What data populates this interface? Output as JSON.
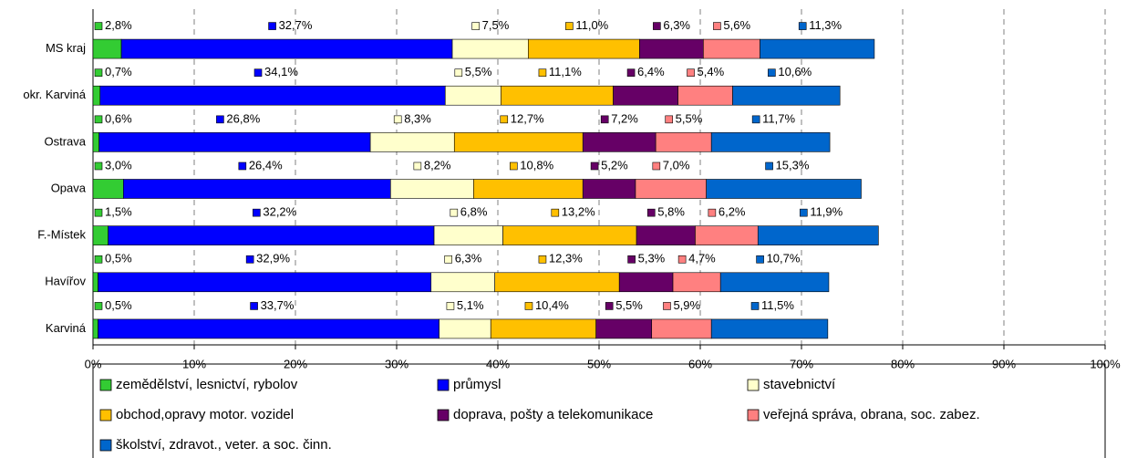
{
  "chart_data": {
    "type": "bar",
    "orientation": "horizontal",
    "stacked": true,
    "categories": [
      "MS kraj",
      "okr. Karviná",
      "Ostrava",
      "Opava",
      "F.-Místek",
      "Havířov",
      "Karviná"
    ],
    "series": [
      {
        "name": "zemědělství, lesnictví, rybolov",
        "color": "#33cc33",
        "values": [
          2.8,
          0.7,
          0.6,
          3.0,
          1.5,
          0.5,
          0.5
        ],
        "value_labels": [
          "2,8%",
          "0,7%",
          "0,6%",
          "3,0%",
          "1,5%",
          "0,5%",
          "0,5%"
        ]
      },
      {
        "name": "průmysl",
        "color": "#0000ff",
        "values": [
          32.7,
          34.1,
          26.8,
          26.4,
          32.2,
          32.9,
          33.7
        ],
        "value_labels": [
          "32,7%",
          "34,1%",
          "26,8%",
          "26,4%",
          "32,2%",
          "32,9%",
          "33,7%"
        ]
      },
      {
        "name": "stavebnictví",
        "color": "#ffffcc",
        "values": [
          7.5,
          5.5,
          8.3,
          8.2,
          6.8,
          6.3,
          5.1
        ],
        "value_labels": [
          "7,5%",
          "5,5%",
          "8,3%",
          "8,2%",
          "6,8%",
          "6,3%",
          "5,1%"
        ]
      },
      {
        "name": "obchod,opravy motor. vozidel",
        "color": "#ffc000",
        "values": [
          11.0,
          11.1,
          12.7,
          10.8,
          13.2,
          12.3,
          10.4
        ],
        "value_labels": [
          "11,0%",
          "11,1%",
          "12,7%",
          "10,8%",
          "13,2%",
          "12,3%",
          "10,4%"
        ]
      },
      {
        "name": "doprava, pošty a telekomunikace",
        "color": "#660066",
        "values": [
          6.3,
          6.4,
          7.2,
          5.2,
          5.8,
          5.3,
          5.5
        ],
        "value_labels": [
          "6,3%",
          "6,4%",
          "7,2%",
          "5,2%",
          "5,8%",
          "5,3%",
          "5,5%"
        ]
      },
      {
        "name": "veřejná správa, obrana, soc. zabez.",
        "color": "#ff8080",
        "values": [
          5.6,
          5.4,
          5.5,
          7.0,
          6.2,
          4.7,
          5.9
        ],
        "value_labels": [
          "5,6%",
          "5,4%",
          "5,5%",
          "7,0%",
          "6,2%",
          "4,7%",
          "5,9%"
        ]
      },
      {
        "name": "školství, zdravot., veter. a soc. činn.",
        "color": "#0066cc",
        "values": [
          11.3,
          10.6,
          11.7,
          15.3,
          11.9,
          10.7,
          11.5
        ],
        "value_labels": [
          "11,3%",
          "10,6%",
          "11,7%",
          "15,3%",
          "11,9%",
          "10,7%",
          "11,5%"
        ]
      }
    ],
    "xlim": [
      0,
      100
    ],
    "xticks": [
      {
        "value": 0,
        "label": "0%"
      },
      {
        "value": 10,
        "label": "10%"
      },
      {
        "value": 20,
        "label": "20%"
      },
      {
        "value": 30,
        "label": "30%"
      },
      {
        "value": 40,
        "label": "40%"
      },
      {
        "value": 50,
        "label": "50%"
      },
      {
        "value": 60,
        "label": "60%"
      },
      {
        "value": 70,
        "label": "70%"
      },
      {
        "value": 80,
        "label": "80%"
      },
      {
        "value": 90,
        "label": "90%"
      },
      {
        "value": 100,
        "label": "100%"
      }
    ],
    "grid": true,
    "legend": "bottom"
  }
}
